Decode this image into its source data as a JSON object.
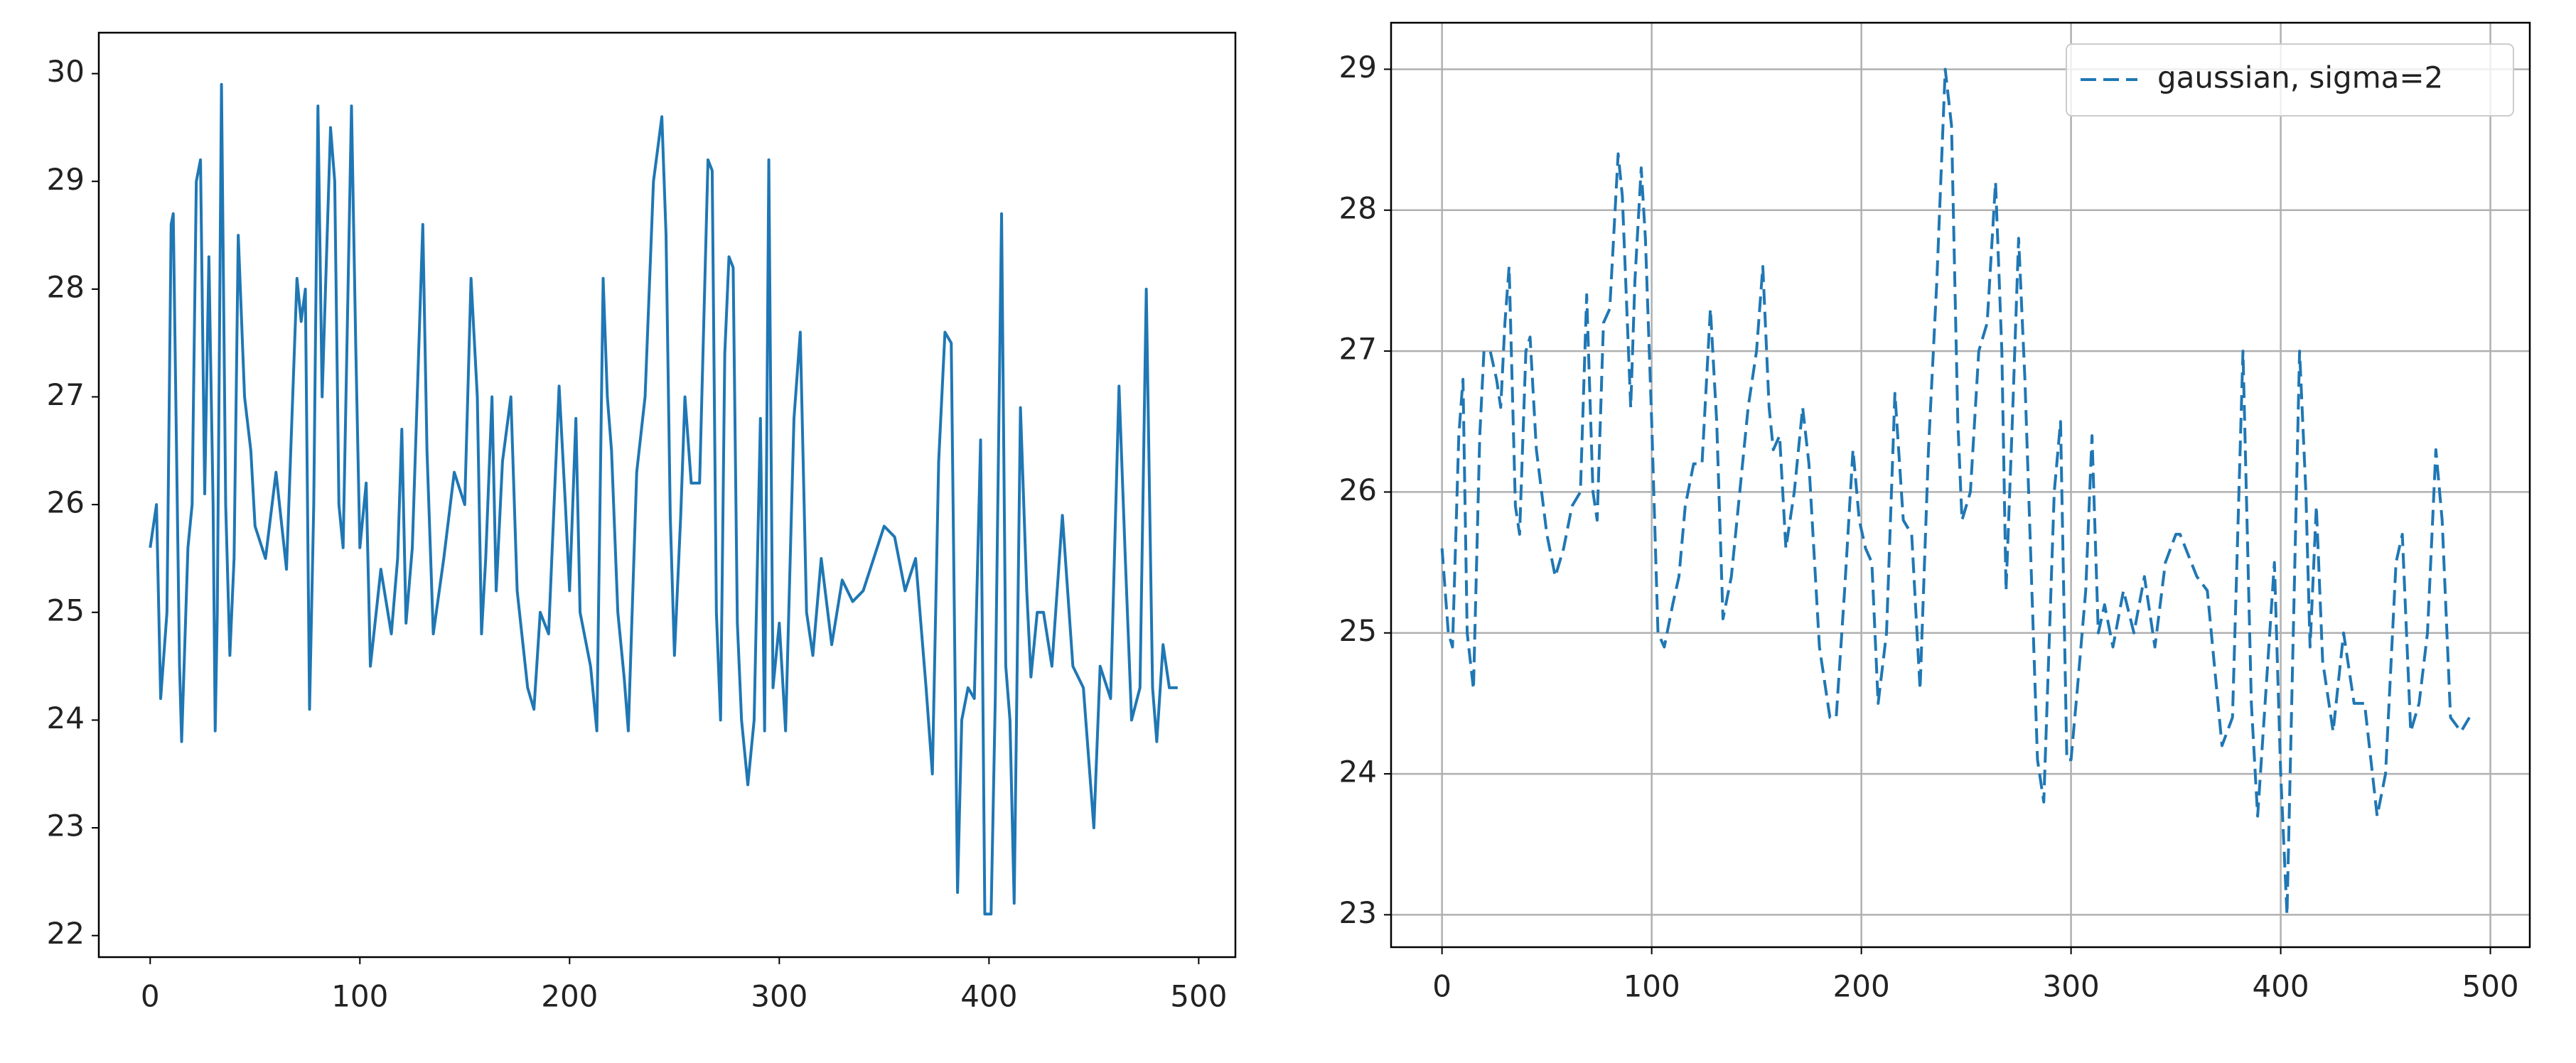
{
  "chart_data": [
    {
      "type": "line",
      "color": "#1f77b4",
      "linestyle": "solid",
      "grid": false,
      "xlim": [
        -24.5,
        517.5
      ],
      "ylim": [
        21.8,
        30.38
      ],
      "xticks": [
        0,
        100,
        200,
        300,
        400,
        500
      ],
      "yticks": [
        22,
        23,
        24,
        25,
        26,
        27,
        28,
        29,
        30
      ],
      "x": [
        0,
        3,
        5,
        8,
        10,
        11,
        14,
        15,
        18,
        20,
        22,
        24,
        26,
        28,
        30,
        31,
        32,
        34,
        36,
        38,
        40,
        42,
        45,
        48,
        50,
        55,
        60,
        65,
        70,
        72,
        74,
        76,
        78,
        80,
        82,
        86,
        88,
        90,
        92,
        96,
        98,
        100,
        103,
        105,
        110,
        115,
        118,
        120,
        122,
        125,
        130,
        132,
        135,
        140,
        145,
        150,
        153,
        156,
        158,
        160,
        163,
        165,
        168,
        172,
        175,
        180,
        183,
        186,
        190,
        195,
        198,
        200,
        203,
        205,
        210,
        213,
        216,
        218,
        220,
        223,
        226,
        228,
        232,
        236,
        240,
        242,
        244,
        246,
        248,
        250,
        253,
        255,
        258,
        262,
        266,
        268,
        270,
        272,
        274,
        276,
        278,
        280,
        282,
        285,
        288,
        291,
        293,
        295,
        297,
        300,
        303,
        307,
        310,
        313,
        316,
        320,
        325,
        330,
        335,
        340,
        345,
        350,
        355,
        360,
        365,
        370,
        373,
        376,
        379,
        382,
        385,
        387,
        390,
        393,
        396,
        398,
        401,
        403,
        406,
        408,
        410,
        412,
        415,
        418,
        420,
        423,
        426,
        430,
        435,
        440,
        445,
        450,
        453,
        458,
        462,
        465,
        468,
        472,
        475,
        478,
        480,
        483,
        486,
        490
      ],
      "values": [
        25.6,
        26.0,
        24.2,
        25.0,
        28.6,
        28.7,
        24.5,
        23.8,
        25.6,
        26.0,
        29.0,
        29.2,
        26.1,
        28.3,
        26.0,
        23.9,
        25.0,
        29.9,
        26.0,
        24.6,
        25.5,
        28.5,
        27.0,
        26.5,
        25.8,
        25.5,
        26.3,
        25.4,
        28.1,
        27.7,
        28.0,
        24.1,
        26.0,
        29.7,
        27.0,
        29.5,
        29.0,
        26.0,
        25.6,
        29.7,
        27.5,
        25.6,
        26.2,
        24.5,
        25.4,
        24.8,
        25.5,
        26.7,
        24.9,
        25.6,
        28.6,
        26.5,
        24.8,
        25.5,
        26.3,
        26.0,
        28.1,
        27.0,
        24.8,
        25.5,
        27.0,
        25.2,
        26.4,
        27.0,
        25.2,
        24.3,
        24.1,
        25.0,
        24.8,
        27.1,
        26.0,
        25.2,
        26.8,
        25.0,
        24.5,
        23.9,
        28.1,
        27.0,
        26.5,
        25.0,
        24.4,
        23.9,
        26.3,
        27.0,
        29.0,
        29.3,
        29.6,
        28.5,
        25.9,
        24.6,
        25.9,
        27.0,
        26.2,
        26.2,
        29.2,
        29.1,
        25.0,
        24.0,
        27.4,
        28.3,
        28.2,
        24.9,
        24.0,
        23.4,
        24.0,
        26.8,
        23.9,
        29.2,
        24.3,
        24.9,
        23.9,
        26.8,
        27.6,
        25.0,
        24.6,
        25.5,
        24.7,
        25.3,
        25.1,
        25.2,
        25.5,
        25.8,
        25.7,
        25.2,
        25.5,
        24.3,
        23.5,
        26.4,
        27.6,
        27.5,
        22.4,
        24.0,
        24.3,
        24.2,
        26.6,
        22.2,
        22.2,
        24.2,
        28.7,
        24.5,
        24.0,
        22.3,
        26.9,
        25.2,
        24.4,
        25.0,
        25.0,
        24.5,
        25.9,
        24.5,
        24.3,
        23.0,
        24.5,
        24.2,
        27.1,
        25.5,
        24.0,
        24.3,
        28.0,
        24.3,
        23.8,
        24.7,
        24.3,
        24.3
      ]
    },
    {
      "type": "line",
      "grid": true,
      "legend": "upper right",
      "xlim": [
        -24.3,
        518.8
      ],
      "ylim": [
        22.77,
        29.33
      ],
      "xticks": [
        0,
        100,
        200,
        300,
        400,
        500
      ],
      "yticks": [
        23,
        24,
        25,
        26,
        27,
        28,
        29
      ],
      "x": [
        0,
        3,
        5,
        8,
        10,
        12,
        15,
        18,
        20,
        23,
        26,
        28,
        30,
        32,
        35,
        37,
        40,
        42,
        45,
        50,
        54,
        58,
        62,
        66,
        69,
        72,
        74,
        77,
        80,
        84,
        86,
        90,
        92,
        95,
        97,
        100,
        103,
        106,
        110,
        113,
        116,
        120,
        124,
        128,
        131,
        134,
        138,
        142,
        146,
        150,
        153,
        156,
        158,
        161,
        164,
        168,
        172,
        175,
        180,
        185,
        188,
        192,
        196,
        199,
        202,
        205,
        208,
        212,
        216,
        220,
        224,
        228,
        232,
        236,
        240,
        243,
        246,
        248,
        252,
        256,
        260,
        264,
        267,
        269,
        272,
        275,
        278,
        284,
        287,
        292,
        295,
        298,
        300,
        303,
        307,
        310,
        313,
        316,
        320,
        325,
        330,
        335,
        340,
        345,
        350,
        352,
        360,
        365,
        372,
        377,
        382,
        386,
        389,
        393,
        397,
        400,
        403,
        406,
        409,
        412,
        414,
        417,
        420,
        425,
        430,
        435,
        440,
        446,
        450,
        455,
        458,
        462,
        466,
        470,
        474,
        477,
        481,
        486,
        490
      ],
      "series": [
        {
          "name": "gaussian, sigma=2",
          "color": "#1f77b4",
          "linestyle": "dashed",
          "values": [
            25.6,
            25.0,
            24.9,
            26.4,
            26.8,
            25.0,
            24.6,
            26.4,
            27.0,
            27.0,
            26.8,
            26.6,
            27.2,
            27.6,
            25.9,
            25.7,
            27.0,
            27.1,
            26.3,
            25.7,
            25.4,
            25.6,
            25.9,
            26.0,
            27.4,
            26.0,
            25.8,
            27.2,
            27.3,
            28.4,
            28.1,
            26.6,
            27.5,
            28.3,
            27.8,
            26.5,
            25.0,
            24.9,
            25.2,
            25.4,
            25.9,
            26.2,
            26.2,
            27.3,
            26.5,
            25.1,
            25.4,
            26.0,
            26.6,
            27.0,
            27.6,
            26.6,
            26.3,
            26.4,
            25.6,
            26.0,
            26.6,
            26.2,
            24.9,
            24.4,
            24.4,
            25.3,
            26.3,
            25.8,
            25.6,
            25.5,
            24.5,
            25.0,
            26.7,
            25.8,
            25.7,
            24.6,
            26.3,
            27.5,
            29.0,
            28.6,
            26.5,
            25.8,
            26.0,
            27.0,
            27.2,
            28.2,
            27.0,
            25.3,
            26.5,
            27.8,
            26.8,
            24.1,
            23.8,
            26.0,
            26.5,
            24.1,
            24.1,
            24.6,
            25.3,
            26.4,
            25.0,
            25.2,
            24.9,
            25.3,
            25.0,
            25.4,
            24.9,
            25.5,
            25.7,
            25.7,
            25.4,
            25.3,
            24.2,
            24.4,
            27.0,
            24.5,
            23.7,
            24.6,
            25.5,
            24.0,
            23.0,
            25.0,
            27.0,
            26.0,
            24.9,
            25.9,
            24.8,
            24.3,
            25.0,
            24.5,
            24.5,
            23.7,
            24.0,
            25.5,
            25.7,
            24.3,
            24.5,
            25.0,
            26.3,
            25.8,
            24.4,
            24.3,
            24.4
          ]
        }
      ]
    }
  ]
}
